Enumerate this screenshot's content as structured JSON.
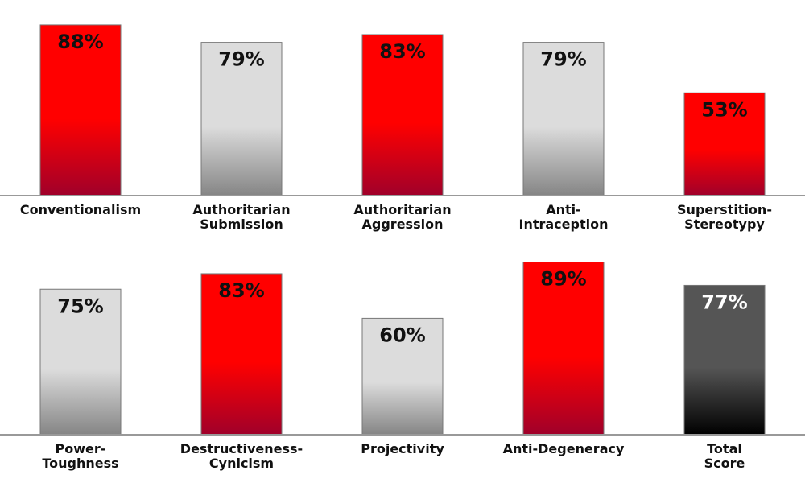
{
  "chart_data": [
    {
      "type": "bar",
      "categories": [
        [
          "Conventionalism"
        ],
        [
          "Authoritarian",
          "Submission"
        ],
        [
          "Authoritarian",
          "Aggression"
        ],
        [
          "Anti-",
          "Intraception"
        ],
        [
          "Superstition-",
          "Stereotypy"
        ]
      ],
      "values": [
        88,
        79,
        83,
        79,
        53
      ],
      "value_labels": [
        "88%",
        "79%",
        "83%",
        "79%",
        "53%"
      ],
      "colors": [
        "#ff0000",
        "#dcdcdc",
        "#ff0000",
        "#dcdcdc",
        "#ff0000"
      ],
      "gradient_to": [
        "#a0002a",
        "#858585",
        "#a0002a",
        "#858585",
        "#a0002a"
      ],
      "label_colors": [
        "#111111",
        "#111111",
        "#111111",
        "#111111",
        "#111111"
      ],
      "ylim": [
        0,
        100
      ]
    },
    {
      "type": "bar",
      "categories": [
        [
          "Power-",
          "Toughness"
        ],
        [
          "Destructiveness-",
          "Cynicism"
        ],
        [
          "Projectivity"
        ],
        [
          "Anti-Degeneracy"
        ],
        [
          "Total",
          "Score"
        ]
      ],
      "values": [
        75,
        83,
        60,
        89,
        77
      ],
      "value_labels": [
        "75%",
        "83%",
        "60%",
        "89%",
        "77%"
      ],
      "colors": [
        "#dcdcdc",
        "#ff0000",
        "#dcdcdc",
        "#ff0000",
        "#555555"
      ],
      "gradient_to": [
        "#858585",
        "#a0002a",
        "#858585",
        "#a0002a",
        "#000000"
      ],
      "label_colors": [
        "#111111",
        "#111111",
        "#111111",
        "#111111",
        "#ffffff"
      ],
      "ylim": [
        0,
        100
      ]
    }
  ]
}
